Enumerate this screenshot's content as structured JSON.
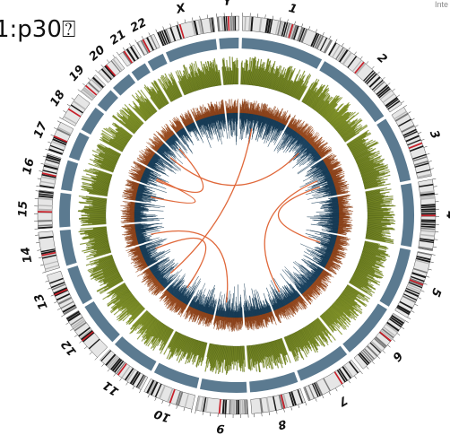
{
  "corner_text": "1:p30⍰",
  "corner_small_text": "Inte",
  "chromosomes": [
    {
      "name": "1",
      "length": 249
    },
    {
      "name": "2",
      "length": 243
    },
    {
      "name": "3",
      "length": 198
    },
    {
      "name": "4",
      "length": 191
    },
    {
      "name": "5",
      "length": 181
    },
    {
      "name": "6",
      "length": 171
    },
    {
      "name": "7",
      "length": 159
    },
    {
      "name": "8",
      "length": 146
    },
    {
      "name": "9",
      "length": 141
    },
    {
      "name": "10",
      "length": 136
    },
    {
      "name": "11",
      "length": 135
    },
    {
      "name": "12",
      "length": 134
    },
    {
      "name": "13",
      "length": 115
    },
    {
      "name": "14",
      "length": 107
    },
    {
      "name": "15",
      "length": 103
    },
    {
      "name": "16",
      "length": 90
    },
    {
      "name": "17",
      "length": 81
    },
    {
      "name": "18",
      "length": 78
    },
    {
      "name": "19",
      "length": 59
    },
    {
      "name": "20",
      "length": 63
    },
    {
      "name": "21",
      "length": 48
    },
    {
      "name": "22",
      "length": 51
    },
    {
      "name": "X",
      "length": 155
    },
    {
      "name": "Y",
      "length": 59
    }
  ],
  "links": [
    {
      "from": "1",
      "to": "12"
    },
    {
      "from": "2",
      "to": "19"
    },
    {
      "from": "3",
      "to": "7"
    },
    {
      "from": "14",
      "to": "9"
    },
    {
      "from": "17",
      "to": "16"
    },
    {
      "from": "20",
      "to": "17"
    },
    {
      "from": "11",
      "to": "13"
    },
    {
      "from": "3",
      "to": "5"
    }
  ],
  "colors": {
    "ideogram_dark": "#1a1a1a",
    "ideogram_light": "#e6e6e6",
    "centromere": "#c8202a",
    "copy_number": "#5b7a90",
    "allele_track": "#b2c43a",
    "expression_pos": "#e07a3c",
    "expression_neg": "#2f6a96",
    "link": "#e0683a"
  }
}
